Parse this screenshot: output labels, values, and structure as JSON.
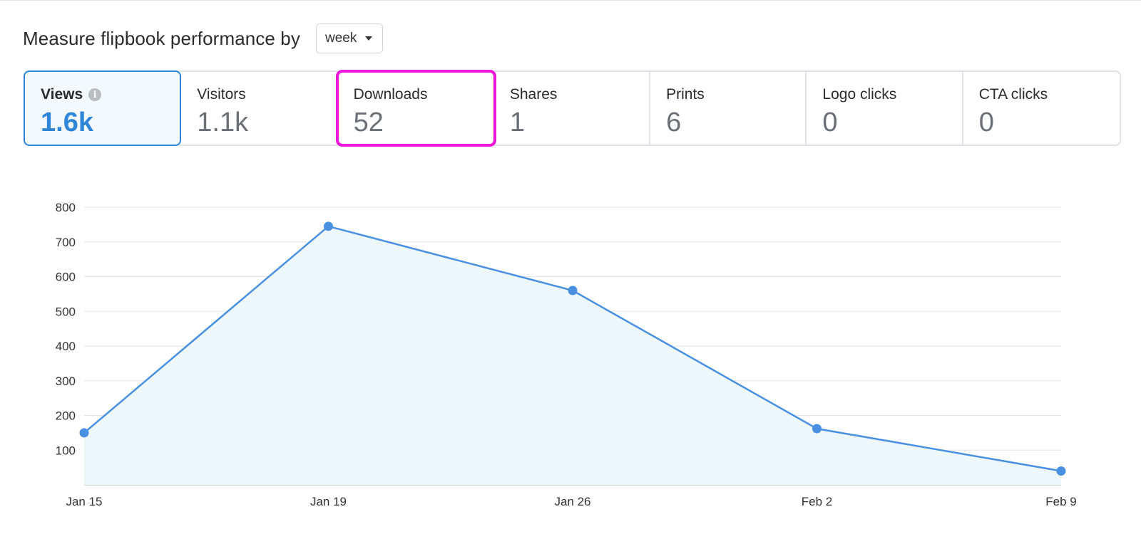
{
  "header": {
    "title": "Measure flipbook performance by",
    "period_select": {
      "value": "week",
      "icon": "caret-down-icon"
    }
  },
  "metrics": [
    {
      "id": "views",
      "label": "Views",
      "value": "1.6k",
      "active": true,
      "info_icon": true
    },
    {
      "id": "visitors",
      "label": "Visitors",
      "value": "1.1k"
    },
    {
      "id": "downloads",
      "label": "Downloads",
      "value": "52",
      "highlighted": true
    },
    {
      "id": "shares",
      "label": "Shares",
      "value": "1"
    },
    {
      "id": "prints",
      "label": "Prints",
      "value": "6"
    },
    {
      "id": "logo-clicks",
      "label": "Logo clicks",
      "value": "0"
    },
    {
      "id": "cta-clicks",
      "label": "CTA clicks",
      "value": "0"
    }
  ],
  "colors": {
    "accent": "#2f86d8",
    "line": "#4a90e2",
    "area": "#eef8fb",
    "highlight": "#ee17d8"
  },
  "chart_data": {
    "type": "area",
    "title": "",
    "xlabel": "",
    "ylabel": "",
    "categories": [
      "Jan 15",
      "Jan 19",
      "Jan 26",
      "Feb 2",
      "Feb 9"
    ],
    "series": [
      {
        "values": [
          150,
          745,
          560,
          162,
          40
        ]
      }
    ],
    "ylim": [
      0,
      800
    ],
    "yticks": [
      100,
      200,
      300,
      400,
      500,
      600,
      700,
      800
    ],
    "grid": true,
    "legend": "none"
  }
}
